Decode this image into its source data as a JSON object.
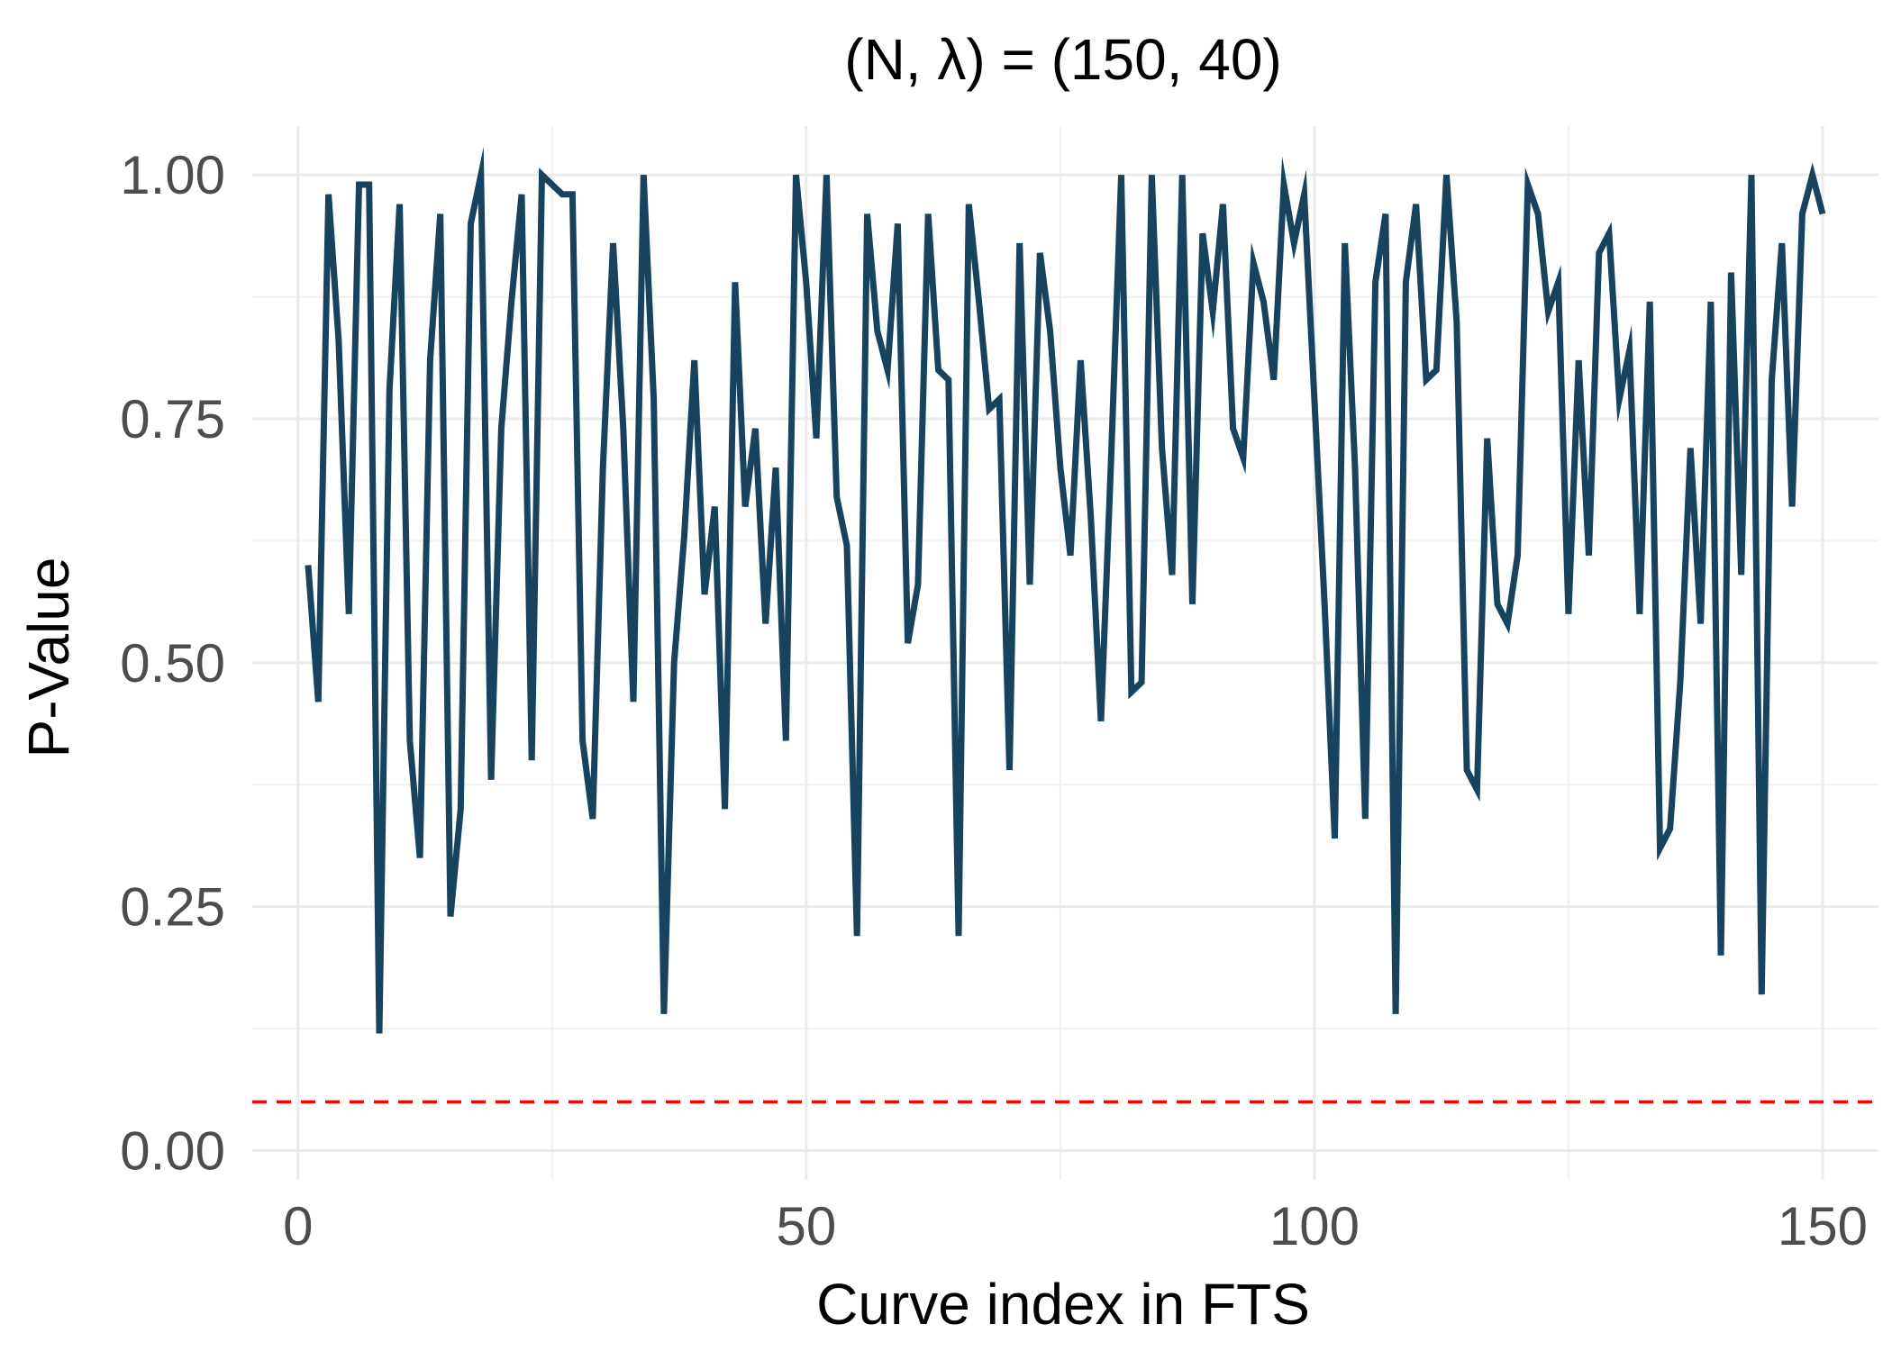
{
  "chart_data": {
    "type": "line",
    "title": "(N, λ) = (150, 40)",
    "xlabel": "Curve index in FTS",
    "ylabel": "P-Value",
    "xlim": [
      -4.5,
      155.5
    ],
    "ylim": [
      -0.03,
      1.05
    ],
    "x_ticks": [
      0,
      50,
      100,
      150
    ],
    "x_tick_labels": [
      "0",
      "50",
      "100",
      "150"
    ],
    "y_ticks": [
      0,
      0.25,
      0.5,
      0.75,
      1
    ],
    "y_tick_labels": [
      "0.00",
      "0.25",
      "0.50",
      "0.75",
      "1.00"
    ],
    "grid": true,
    "legend": "none",
    "reference_line": {
      "y": 0.05,
      "style": "dashed",
      "color": "#ff0000"
    },
    "series": [
      {
        "color": "#17435f",
        "x": [
          1,
          2,
          3,
          4,
          5,
          6,
          7,
          8,
          9,
          10,
          11,
          12,
          13,
          14,
          15,
          16,
          17,
          18,
          19,
          20,
          21,
          22,
          23,
          24,
          25,
          26,
          27,
          28,
          29,
          30,
          31,
          32,
          33,
          34,
          35,
          36,
          37,
          38,
          39,
          40,
          41,
          42,
          43,
          44,
          45,
          46,
          47,
          48,
          49,
          50,
          51,
          52,
          53,
          54,
          55,
          56,
          57,
          58,
          59,
          60,
          61,
          62,
          63,
          64,
          65,
          66,
          67,
          68,
          69,
          70,
          71,
          72,
          73,
          74,
          75,
          76,
          77,
          78,
          79,
          80,
          81,
          82,
          83,
          84,
          85,
          86,
          87,
          88,
          89,
          90,
          91,
          92,
          93,
          94,
          95,
          96,
          97,
          98,
          99,
          100,
          101,
          102,
          103,
          104,
          105,
          106,
          107,
          108,
          109,
          110,
          111,
          112,
          113,
          114,
          115,
          116,
          117,
          118,
          119,
          120,
          121,
          122,
          123,
          124,
          125,
          126,
          127,
          128,
          129,
          130,
          131,
          132,
          133,
          134,
          135,
          136,
          137,
          138,
          139,
          140,
          141,
          142,
          143,
          144,
          145,
          146,
          147,
          148,
          149,
          150
        ],
        "values": [
          0.6,
          0.46,
          0.98,
          0.83,
          0.55,
          0.99,
          0.99,
          0.12,
          0.78,
          0.97,
          0.42,
          0.3,
          0.81,
          0.96,
          0.24,
          0.35,
          0.95,
          1.0,
          0.38,
          0.74,
          0.87,
          0.98,
          0.4,
          1.0,
          0.99,
          0.98,
          0.98,
          0.42,
          0.34,
          0.7,
          0.93,
          0.74,
          0.46,
          1.0,
          0.77,
          0.14,
          0.5,
          0.63,
          0.81,
          0.57,
          0.66,
          0.35,
          0.89,
          0.66,
          0.74,
          0.54,
          0.7,
          0.42,
          1.0,
          0.89,
          0.73,
          1.0,
          0.67,
          0.62,
          0.22,
          0.96,
          0.84,
          0.8,
          0.95,
          0.52,
          0.58,
          0.96,
          0.8,
          0.79,
          0.22,
          0.97,
          0.87,
          0.76,
          0.77,
          0.39,
          0.93,
          0.58,
          0.92,
          0.84,
          0.7,
          0.61,
          0.81,
          0.65,
          0.44,
          0.71,
          1.0,
          0.47,
          0.48,
          1.0,
          0.72,
          0.59,
          1.0,
          0.56,
          0.94,
          0.86,
          0.97,
          0.74,
          0.71,
          0.91,
          0.87,
          0.79,
          0.99,
          0.93,
          0.98,
          0.77,
          0.56,
          0.32,
          0.93,
          0.7,
          0.34,
          0.89,
          0.96,
          0.14,
          0.89,
          0.97,
          0.79,
          0.8,
          1.0,
          0.85,
          0.39,
          0.37,
          0.73,
          0.56,
          0.54,
          0.61,
          0.99,
          0.96,
          0.86,
          0.89,
          0.55,
          0.81,
          0.61,
          0.92,
          0.94,
          0.77,
          0.82,
          0.55,
          0.87,
          0.31,
          0.33,
          0.48,
          0.72,
          0.54,
          0.87,
          0.2,
          0.9,
          0.59,
          1.0,
          0.16,
          0.79,
          0.93,
          0.66,
          0.96,
          1.0,
          0.96
        ]
      }
    ]
  }
}
